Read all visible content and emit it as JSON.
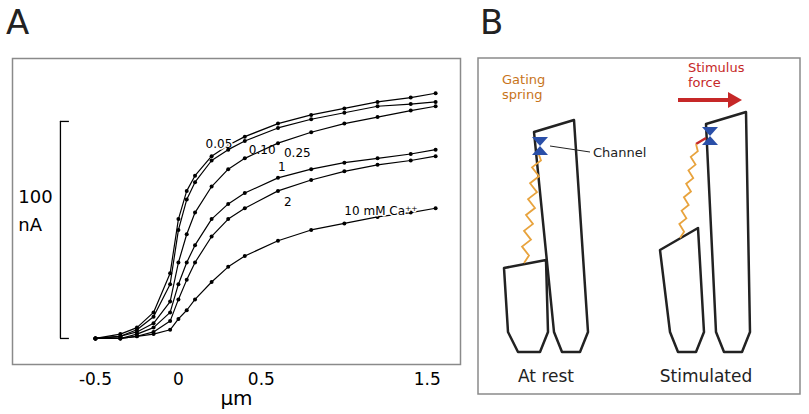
{
  "panel_labels": [
    "A",
    "B"
  ],
  "chart_data": {
    "type": "line",
    "xlabel": "µm",
    "x": [
      -0.5,
      -0.35,
      -0.25,
      -0.15,
      -0.05,
      0,
      0.05,
      0.1,
      0.2,
      0.3,
      0.4,
      0.6,
      0.8,
      1.0,
      1.2,
      1.4,
      1.55
    ],
    "series": [
      {
        "name": "0.05",
        "color": "#000000",
        "values": [
          0,
          2,
          5,
          12,
          30,
          55,
          68,
          75,
          84,
          89,
          93,
          99,
          103,
          106,
          109,
          111,
          113
        ]
      },
      {
        "name": "0.10",
        "color": "#000000",
        "values": [
          0,
          1,
          4,
          10,
          25,
          50,
          64,
          72,
          82,
          87,
          91,
          97,
          101,
          104,
          107,
          108,
          109
        ]
      },
      {
        "name": "0.25",
        "color": "#000000",
        "values": [
          0,
          1,
          3,
          7,
          17,
          35,
          48,
          58,
          70,
          78,
          83,
          90,
          95,
          99,
          102,
          105,
          107
        ]
      },
      {
        "name": "1",
        "color": "#000000",
        "values": [
          0,
          0,
          2,
          5,
          12,
          25,
          35,
          43,
          55,
          62,
          67,
          74,
          78,
          81,
          83,
          85,
          87
        ]
      },
      {
        "name": "2",
        "color": "#000000",
        "values": [
          0,
          0,
          1,
          3,
          8,
          18,
          27,
          35,
          47,
          55,
          60,
          68,
          73,
          77,
          80,
          82,
          84
        ]
      },
      {
        "name": "10 mM Ca⁺⁺",
        "color": "#000000",
        "values": [
          0,
          0,
          1,
          2,
          4,
          9,
          13,
          18,
          26,
          33,
          38,
          45,
          50,
          53,
          56,
          58,
          60
        ]
      }
    ],
    "xlim": [
      -1,
      1.7
    ],
    "xticks": [
      -0.5,
      0,
      0.5,
      1.5
    ],
    "ylim": [
      -12,
      129
    ],
    "scale_bar": {
      "value": 100,
      "unit": "nA"
    },
    "tick_labels": "x",
    "marker": "circle",
    "line_style": "solid",
    "grid": false
  },
  "diagram": {
    "labels": {
      "gating_spring": "Gating spring",
      "channel": "Channel",
      "stimulus": "Stimulus force",
      "rest": "At rest",
      "stimulated": "Stimulated"
    }
  }
}
